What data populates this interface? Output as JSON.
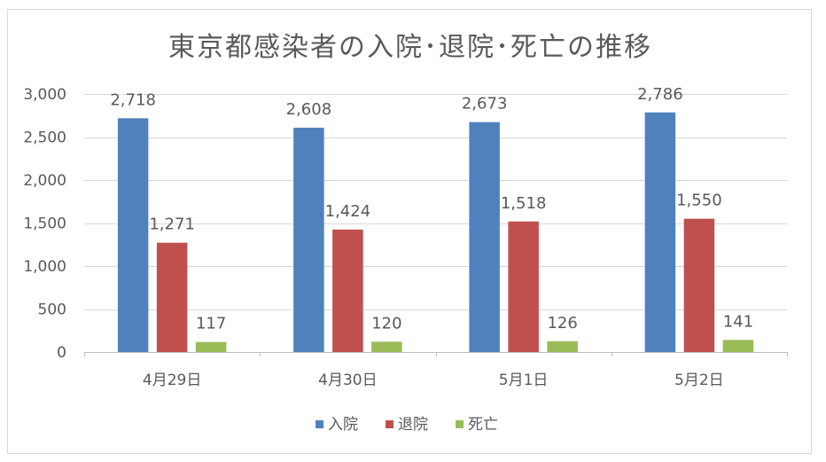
{
  "chart_data": {
    "type": "bar",
    "title": "東京都感染者の入院･退院･死亡の推移",
    "categories": [
      "4月29日",
      "4月30日",
      "5月1日",
      "5月2日"
    ],
    "series": [
      {
        "name": "入院",
        "values": [
          2718,
          2608,
          2673,
          2786
        ],
        "labels": [
          "2,718",
          "2,608",
          "2,673",
          "2,786"
        ],
        "color": "#4F81BD"
      },
      {
        "name": "退院",
        "values": [
          1271,
          1424,
          1518,
          1550
        ],
        "labels": [
          "1,271",
          "1,424",
          "1,518",
          "1,550"
        ],
        "color": "#C0504D"
      },
      {
        "name": "死亡",
        "values": [
          117,
          120,
          126,
          141
        ],
        "labels": [
          "117",
          "120",
          "126",
          "141"
        ],
        "color": "#9BBB59"
      }
    ],
    "ylim": [
      0,
      3000
    ],
    "yticks": [
      0,
      500,
      1000,
      1500,
      2000,
      2500,
      3000
    ],
    "ytick_labels": [
      "0",
      "500",
      "1,000",
      "1,500",
      "2,000",
      "2,500",
      "3,000"
    ],
    "grid": true,
    "legend": "bottom"
  }
}
